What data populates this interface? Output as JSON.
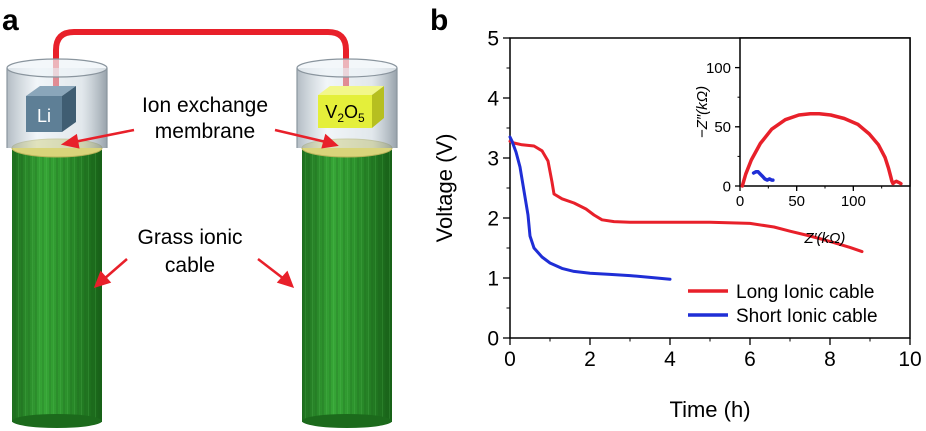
{
  "panel_a": {
    "label": "a",
    "left_device_label": "Li",
    "right_device_label_main": "V",
    "right_device_sub1": "2",
    "right_device_mid": "O",
    "right_device_sub2": "5",
    "membrane_line1": "Ion exchange",
    "membrane_line2": "membrane",
    "cable_line1": "Grass ionic",
    "cable_line2": "cable",
    "colors": {
      "wire": "#e8202a",
      "grass": "#2f9a2f",
      "membrane": "#d9d47a",
      "li_cube": "#5e7f96",
      "v2o5_cube": "#e4ef3a",
      "arrow": "#e8202a"
    }
  },
  "panel_b": {
    "label": "b"
  },
  "chart_data": [
    {
      "type": "line",
      "xlabel": "Time (h)",
      "ylabel": "Voltage (V)",
      "xlim": [
        0,
        10
      ],
      "ylim": [
        0,
        5
      ],
      "xticks": [
        "0",
        "2",
        "4",
        "6",
        "8",
        "10"
      ],
      "yticks": [
        "0",
        "1",
        "2",
        "3",
        "4",
        "5"
      ],
      "legend_position": "bottom-right",
      "series": [
        {
          "name": "Long Ionic cable",
          "color": "#e8202a",
          "x": [
            0,
            0.1,
            0.3,
            0.6,
            0.8,
            0.95,
            1.05,
            1.1,
            1.3,
            1.6,
            1.9,
            2.1,
            2.3,
            2.6,
            3.0,
            4.0,
            5.0,
            6.0,
            6.6,
            7.0,
            7.5,
            8.0,
            8.5,
            8.8
          ],
          "y": [
            3.28,
            3.25,
            3.22,
            3.2,
            3.12,
            2.95,
            2.6,
            2.4,
            2.32,
            2.25,
            2.15,
            2.05,
            1.97,
            1.94,
            1.93,
            1.93,
            1.93,
            1.91,
            1.85,
            1.78,
            1.7,
            1.61,
            1.51,
            1.44
          ]
        },
        {
          "name": "Short Ionic cable",
          "color": "#1f2ed6",
          "x": [
            0,
            0.05,
            0.15,
            0.25,
            0.35,
            0.45,
            0.5,
            0.6,
            0.8,
            1.0,
            1.3,
            1.6,
            2.0,
            2.5,
            3.0,
            3.5,
            4.0
          ],
          "y": [
            3.35,
            3.28,
            3.1,
            2.85,
            2.45,
            2.05,
            1.7,
            1.5,
            1.35,
            1.25,
            1.16,
            1.11,
            1.08,
            1.06,
            1.04,
            1.01,
            0.98
          ]
        }
      ]
    },
    {
      "type": "line",
      "xlabel": "Z′(kΩ)",
      "ylabel": "−Z″(kΩ)",
      "xlim": [
        0,
        150
      ],
      "ylim": [
        0,
        125
      ],
      "xticks": [
        "0",
        "50",
        "100"
      ],
      "yticks": [
        "0",
        "50",
        "100"
      ],
      "series": [
        {
          "name": "Long Ionic cable",
          "color": "#e8202a",
          "x": [
            2,
            5,
            10,
            18,
            28,
            40,
            52,
            62,
            70,
            80,
            92,
            104,
            114,
            122,
            128,
            131,
            133,
            134,
            135,
            136,
            138,
            140,
            142
          ],
          "y": [
            0,
            10,
            22,
            36,
            48,
            56,
            60,
            61,
            61,
            60,
            57,
            52,
            44,
            35,
            24,
            15,
            8,
            4,
            2,
            3,
            4,
            3,
            2
          ]
        },
        {
          "name": "Short Ionic cable",
          "color": "#1f2ed6",
          "x": [
            12,
            14,
            16,
            18,
            20,
            22,
            24,
            26,
            28,
            29
          ],
          "y": [
            11,
            12,
            12,
            10,
            8,
            6,
            5,
            6,
            5,
            5
          ]
        }
      ]
    }
  ]
}
